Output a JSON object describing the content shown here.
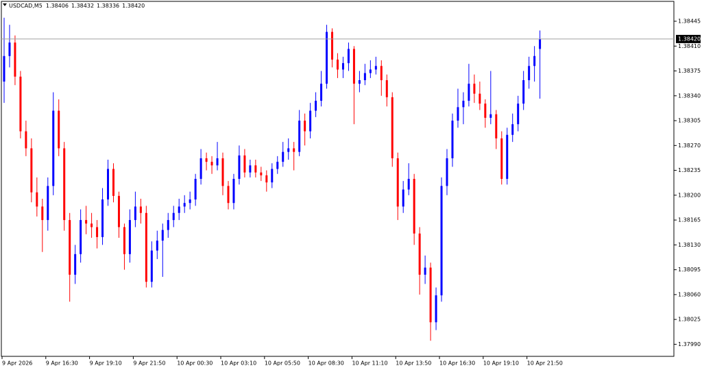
{
  "chart_data": {
    "type": "candlestick",
    "symbol": "USDCAD,M5",
    "up_color": "#0000ff",
    "down_color": "#ff0000",
    "current_price": {
      "value": 1.3842,
      "label": "1.38420"
    },
    "ylim": [
      1.37973,
      1.38473
    ],
    "yticks": [
      1.38445,
      {
        "value": 1.3841,
        "label": "1.38410"
      },
      1.38375,
      {
        "value": 1.3834,
        "label": "1.38340"
      },
      1.38305,
      {
        "value": 1.3827,
        "label": "1.38270"
      },
      1.38235,
      {
        "value": 1.382,
        "label": "1.38200"
      },
      1.38165,
      {
        "value": 1.3813,
        "label": "1.38130"
      },
      1.38095,
      {
        "value": 1.3806,
        "label": "1.38060"
      },
      1.38025,
      {
        "value": 1.3799,
        "label": "1.37990"
      }
    ],
    "xlim": [
      0,
      123
    ],
    "xticks": [
      {
        "value": 0,
        "label": "9 Apr 2026"
      },
      {
        "value": 8,
        "label": "9 Apr 16:30"
      },
      {
        "value": 16,
        "label": "9 Apr 19:10"
      },
      {
        "value": 24,
        "label": "9 Apr 21:50"
      },
      {
        "value": 32,
        "label": "10 Apr 00:30"
      },
      {
        "value": 40,
        "label": "10 Apr 03:10"
      },
      {
        "value": 48,
        "label": "10 Apr 05:50"
      },
      {
        "value": 56,
        "label": "10 Apr 08:30"
      },
      {
        "value": 64,
        "label": "10 Apr 11:10"
      },
      {
        "value": 72,
        "label": "10 Apr 13:50"
      },
      {
        "value": 80,
        "label": "10 Apr 16:30"
      },
      {
        "value": 88,
        "label": "10 Apr 19:10"
      },
      {
        "value": 96,
        "label": "10 Apr 21:50"
      }
    ],
    "ohlc": [
      [
        1.3836,
        1.3845,
        1.3833,
        1.38396
      ],
      [
        1.38396,
        1.3844,
        1.3838,
        1.38415
      ],
      [
        1.38415,
        1.38425,
        1.38355,
        1.38367
      ],
      [
        1.38367,
        1.38375,
        1.3828,
        1.3829
      ],
      [
        1.3829,
        1.38305,
        1.38255,
        1.38266
      ],
      [
        1.38266,
        1.3828,
        1.3819,
        1.38204
      ],
      [
        1.38204,
        1.38225,
        1.3817,
        1.38184
      ],
      [
        1.38184,
        1.38195,
        1.3812,
        1.38165
      ],
      [
        1.38165,
        1.38225,
        1.3815,
        1.38213
      ],
      [
        1.38213,
        1.38345,
        1.382,
        1.38319
      ],
      [
        1.38319,
        1.38335,
        1.38255,
        1.38266
      ],
      [
        1.38266,
        1.38275,
        1.3815,
        1.38165
      ],
      [
        1.38165,
        1.38175,
        1.3805,
        1.38088
      ],
      [
        1.38088,
        1.3813,
        1.38075,
        1.38117
      ],
      [
        1.38117,
        1.3818,
        1.38105,
        1.38165
      ],
      [
        1.38165,
        1.38185,
        1.38145,
        1.3816
      ],
      [
        1.3816,
        1.38175,
        1.3814,
        1.38155
      ],
      [
        1.38155,
        1.38165,
        1.38125,
        1.38141
      ],
      [
        1.38141,
        1.3821,
        1.3813,
        1.38194
      ],
      [
        1.38194,
        1.3825,
        1.38185,
        1.38237
      ],
      [
        1.38237,
        1.38245,
        1.3819,
        1.38199
      ],
      [
        1.38199,
        1.38205,
        1.3814,
        1.38155
      ],
      [
        1.38155,
        1.3816,
        1.38095,
        1.38117
      ],
      [
        1.38117,
        1.3818,
        1.38105,
        1.38165
      ],
      [
        1.38165,
        1.38205,
        1.38155,
        1.38184
      ],
      [
        1.38184,
        1.38195,
        1.3816,
        1.38175
      ],
      [
        1.38175,
        1.38185,
        1.3807,
        1.38078
      ],
      [
        1.38078,
        1.38135,
        1.3807,
        1.38122
      ],
      [
        1.38122,
        1.3815,
        1.3811,
        1.38136
      ],
      [
        1.38136,
        1.3816,
        1.38085,
        1.38151
      ],
      [
        1.38151,
        1.38175,
        1.3814,
        1.38165
      ],
      [
        1.38165,
        1.38185,
        1.38155,
        1.38175
      ],
      [
        1.38175,
        1.38195,
        1.38165,
        1.38184
      ],
      [
        1.38184,
        1.382,
        1.38175,
        1.38189
      ],
      [
        1.38189,
        1.38205,
        1.3818,
        1.38194
      ],
      [
        1.38194,
        1.3823,
        1.38185,
        1.38223
      ],
      [
        1.38223,
        1.38265,
        1.38215,
        1.38252
      ],
      [
        1.38252,
        1.3826,
        1.38235,
        1.38247
      ],
      [
        1.38247,
        1.38255,
        1.3823,
        1.38242
      ],
      [
        1.38242,
        1.38275,
        1.38235,
        1.38252
      ],
      [
        1.38252,
        1.3826,
        1.382,
        1.38213
      ],
      [
        1.38213,
        1.3822,
        1.3818,
        1.38189
      ],
      [
        1.38189,
        1.3823,
        1.3818,
        1.38223
      ],
      [
        1.38223,
        1.3827,
        1.38215,
        1.38256
      ],
      [
        1.38256,
        1.38265,
        1.38225,
        1.38232
      ],
      [
        1.38232,
        1.3825,
        1.38225,
        1.38242
      ],
      [
        1.38242,
        1.3825,
        1.38225,
        1.38232
      ],
      [
        1.38232,
        1.3824,
        1.3822,
        1.38228
      ],
      [
        1.38228,
        1.38235,
        1.38205,
        1.38218
      ],
      [
        1.38218,
        1.38245,
        1.3821,
        1.38237
      ],
      [
        1.38237,
        1.38255,
        1.3823,
        1.38247
      ],
      [
        1.38247,
        1.38275,
        1.3824,
        1.38261
      ],
      [
        1.38261,
        1.3828,
        1.3825,
        1.38266
      ],
      [
        1.38266,
        1.38275,
        1.38235,
        1.38261
      ],
      [
        1.38261,
        1.3832,
        1.38255,
        1.38305
      ],
      [
        1.38305,
        1.38315,
        1.3827,
        1.3829
      ],
      [
        1.3829,
        1.3833,
        1.3828,
        1.38319
      ],
      [
        1.38319,
        1.38345,
        1.3831,
        1.38333
      ],
      [
        1.38333,
        1.38375,
        1.38325,
        1.38357
      ],
      [
        1.38357,
        1.3844,
        1.3835,
        1.3843
      ],
      [
        1.3843,
        1.38435,
        1.3838,
        1.38391
      ],
      [
        1.38391,
        1.384,
        1.38365,
        1.38377
      ],
      [
        1.38377,
        1.38395,
        1.38365,
        1.38386
      ],
      [
        1.38386,
        1.38415,
        1.38375,
        1.38406
      ],
      [
        1.38406,
        1.3841,
        1.383,
        1.38357
      ],
      [
        1.38357,
        1.38375,
        1.38345,
        1.38362
      ],
      [
        1.38362,
        1.38385,
        1.38355,
        1.38372
      ],
      [
        1.38372,
        1.3839,
        1.38365,
        1.38377
      ],
      [
        1.38377,
        1.38395,
        1.3837,
        1.38382
      ],
      [
        1.38382,
        1.3839,
        1.3834,
        1.38362
      ],
      [
        1.38362,
        1.3837,
        1.38325,
        1.38338
      ],
      [
        1.38338,
        1.38345,
        1.3824,
        1.38252
      ],
      [
        1.38252,
        1.3826,
        1.38165,
        1.38184
      ],
      [
        1.38184,
        1.3822,
        1.38175,
        1.38208
      ],
      [
        1.38208,
        1.38245,
        1.382,
        1.38223
      ],
      [
        1.38223,
        1.3823,
        1.3813,
        1.38146
      ],
      [
        1.38146,
        1.38155,
        1.3806,
        1.38088
      ],
      [
        1.38088,
        1.38115,
        1.38075,
        1.38098
      ],
      [
        1.38098,
        1.38105,
        1.37995,
        1.38021
      ],
      [
        1.38021,
        1.3807,
        1.3801,
        1.38059
      ],
      [
        1.38059,
        1.38225,
        1.3805,
        1.38213
      ],
      [
        1.38213,
        1.38265,
        1.382,
        1.38252
      ],
      [
        1.38252,
        1.38315,
        1.3824,
        1.38305
      ],
      [
        1.38305,
        1.3835,
        1.38295,
        1.38324
      ],
      [
        1.38324,
        1.38345,
        1.383,
        1.38333
      ],
      [
        1.38333,
        1.38385,
        1.38325,
        1.38357
      ],
      [
        1.38357,
        1.3837,
        1.3833,
        1.38343
      ],
      [
        1.38343,
        1.3836,
        1.3832,
        1.38329
      ],
      [
        1.38329,
        1.38335,
        1.38295,
        1.38309
      ],
      [
        1.38309,
        1.38375,
        1.383,
        1.38314
      ],
      [
        1.38314,
        1.3832,
        1.38265,
        1.3828
      ],
      [
        1.3828,
        1.3829,
        1.38215,
        1.38223
      ],
      [
        1.38223,
        1.38295,
        1.38215,
        1.38285
      ],
      [
        1.38285,
        1.38315,
        1.38275,
        1.383
      ],
      [
        1.383,
        1.3834,
        1.3829,
        1.38329
      ],
      [
        1.38329,
        1.38375,
        1.3832,
        1.38362
      ],
      [
        1.38362,
        1.38395,
        1.3835,
        1.38382
      ],
      [
        1.38382,
        1.3841,
        1.3836,
        1.38396
      ],
      [
        1.38406,
        1.38432,
        1.38336,
        1.3842
      ]
    ]
  }
}
